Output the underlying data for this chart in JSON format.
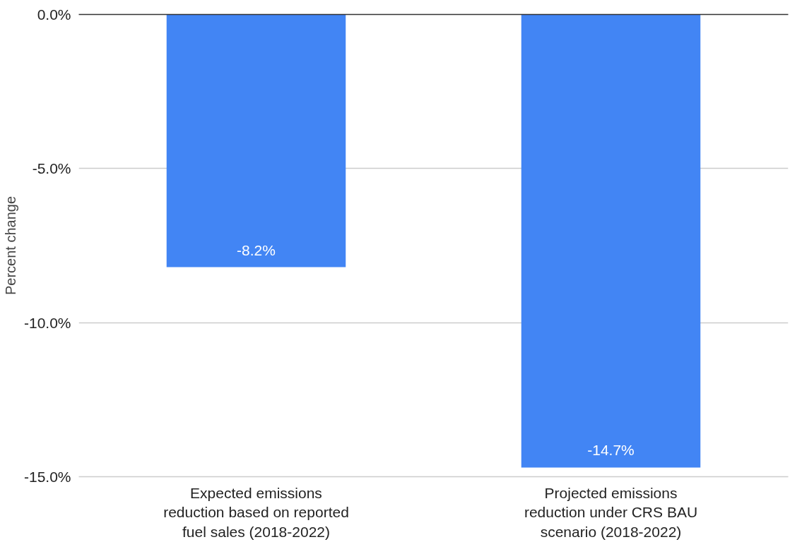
{
  "chart_data": {
    "type": "bar",
    "ylabel": "Percent change",
    "categories": [
      "Expected emissions reduction based on reported fuel sales (2018-2022)",
      "Projected emissions reduction under CRS BAU scenario (2018-2022)"
    ],
    "values": [
      -8.2,
      -14.7
    ],
    "value_labels": [
      "-8.2%",
      "-14.7%"
    ],
    "color": "#4285f4",
    "ylim": [
      -15,
      0
    ],
    "yticks": [
      {
        "value": 0,
        "label": "0.0%"
      },
      {
        "value": -5,
        "label": "-5.0%"
      },
      {
        "value": -10,
        "label": "-10.0%"
      },
      {
        "value": -15,
        "label": "-15.0%"
      }
    ],
    "grid": "y"
  }
}
